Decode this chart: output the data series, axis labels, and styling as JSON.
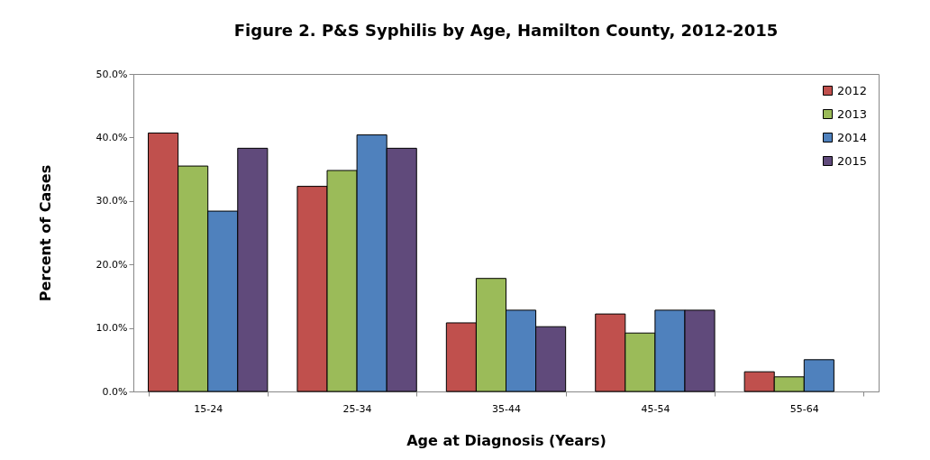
{
  "chart_data": {
    "type": "bar",
    "title": "Figure 2.  P&S Syphilis by Age, Hamilton County, 2012-2015",
    "xlabel": "Age at Diagnosis (Years)",
    "ylabel": "Percent of Cases",
    "categories": [
      "15-24",
      "25-34",
      "35-44",
      "45-54",
      "55-64"
    ],
    "series": [
      {
        "name": "2012",
        "color": "#c0504d",
        "values": [
          40.7,
          32.3,
          10.8,
          12.2,
          3.1
        ]
      },
      {
        "name": "2013",
        "color": "#9bbb59",
        "values": [
          35.5,
          34.8,
          17.8,
          9.2,
          2.3
        ]
      },
      {
        "name": "2014",
        "color": "#4f81bd",
        "values": [
          28.4,
          40.4,
          12.8,
          12.8,
          5.0
        ]
      },
      {
        "name": "2015",
        "color": "#604a7b",
        "values": [
          38.3,
          38.3,
          10.2,
          12.8,
          null
        ]
      }
    ],
    "ylim": [
      0,
      50
    ],
    "yticks": [
      {
        "value": 0,
        "label": "0.0%"
      },
      {
        "value": 10,
        "label": "10.0%"
      },
      {
        "value": 20,
        "label": "20.0%"
      },
      {
        "value": 30,
        "label": "30.0%"
      },
      {
        "value": 40,
        "label": "40.0%"
      },
      {
        "value": 50,
        "label": "50.0%"
      }
    ],
    "legend": "top right"
  }
}
